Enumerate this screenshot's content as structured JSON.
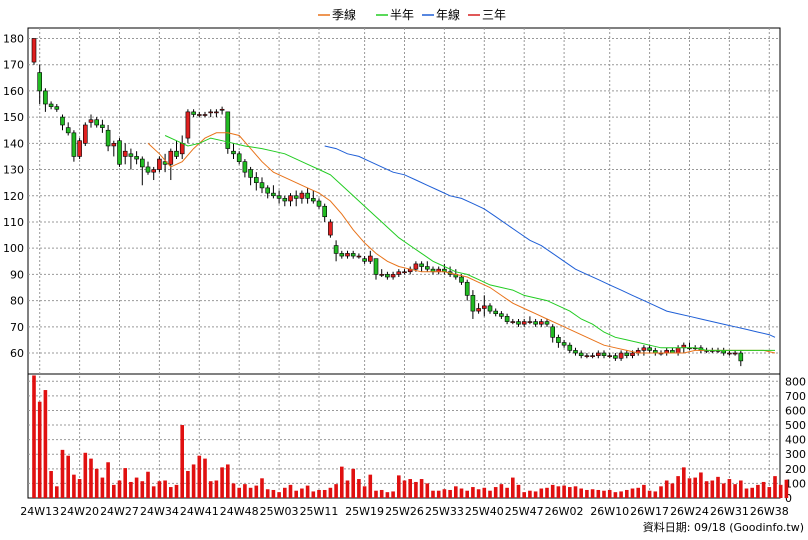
{
  "chart_data": {
    "type": "candlestick",
    "legend": [
      {
        "label": "季線",
        "color": "#e8731a"
      },
      {
        "label": "半年",
        "color": "#22cc22"
      },
      {
        "label": "年線",
        "color": "#1f5fd6"
      },
      {
        "label": "三年",
        "color": "#d62020"
      }
    ],
    "price_axis": {
      "ticks": [
        60,
        70,
        80,
        90,
        100,
        110,
        120,
        130,
        140,
        150,
        160,
        170,
        180
      ],
      "ylim": [
        52,
        184
      ]
    },
    "volume_axis": {
      "ticks": [
        0,
        100,
        200,
        300,
        400,
        500,
        600,
        700,
        800
      ],
      "ylim": [
        0,
        850
      ]
    },
    "x_ticks": [
      {
        "label": "24W13",
        "i": 1
      },
      {
        "label": "24W20",
        "i": 8
      },
      {
        "label": "24W27",
        "i": 15
      },
      {
        "label": "24W34",
        "i": 22
      },
      {
        "label": "24W41",
        "i": 29
      },
      {
        "label": "24W48",
        "i": 36
      },
      {
        "label": "25W03",
        "i": 43
      },
      {
        "label": "25W11",
        "i": 50
      },
      {
        "label": "25W19",
        "i": 58
      },
      {
        "label": "25W26",
        "i": 65
      },
      {
        "label": "25W33",
        "i": 72
      },
      {
        "label": "25W40",
        "i": 79
      },
      {
        "label": "25W47",
        "i": 86
      },
      {
        "label": "26W02",
        "i": 93
      },
      {
        "label": "26W10",
        "i": 101
      },
      {
        "label": "26W17",
        "i": 108
      },
      {
        "label": "26W24",
        "i": 115
      },
      {
        "label": "26W31",
        "i": 122
      },
      {
        "label": "26W38",
        "i": 129
      }
    ],
    "candles": [
      [
        171,
        180,
        170,
        180
      ],
      [
        167,
        170,
        155,
        160
      ],
      [
        160,
        161,
        152,
        155
      ],
      [
        155,
        156,
        153,
        154
      ],
      [
        154,
        155,
        152,
        153
      ],
      [
        150,
        151,
        145,
        147
      ],
      [
        146,
        148,
        143,
        144
      ],
      [
        144,
        145,
        133,
        135
      ],
      [
        135,
        142,
        134,
        141
      ],
      [
        140,
        148,
        139,
        147
      ],
      [
        148,
        151,
        146,
        149
      ],
      [
        149,
        150,
        146,
        147
      ],
      [
        147,
        149,
        144,
        146
      ],
      [
        145,
        147,
        137,
        139
      ],
      [
        139,
        141,
        135,
        140
      ],
      [
        141,
        142,
        131,
        132
      ],
      [
        135,
        140,
        132,
        137
      ],
      [
        136,
        138,
        130,
        135
      ],
      [
        135,
        137,
        132,
        134
      ],
      [
        134,
        135,
        124,
        131
      ],
      [
        131,
        133,
        128,
        129
      ],
      [
        129,
        131,
        126,
        130
      ],
      [
        130,
        135,
        129,
        134
      ],
      [
        133,
        136,
        129,
        132
      ],
      [
        132,
        138,
        126,
        137
      ],
      [
        137,
        141,
        134,
        135
      ],
      [
        136,
        143,
        134,
        140
      ],
      [
        142,
        153,
        140,
        152
      ],
      [
        152,
        153,
        150,
        151
      ],
      [
        151,
        152,
        150,
        151
      ],
      [
        151,
        152,
        150,
        151
      ],
      [
        152,
        153,
        150,
        152
      ],
      [
        152,
        153,
        150,
        152
      ],
      [
        153,
        154,
        151,
        153
      ],
      [
        152,
        152,
        136,
        138
      ],
      [
        137,
        140,
        134,
        136
      ],
      [
        136,
        137,
        132,
        133
      ],
      [
        133,
        134,
        127,
        129
      ],
      [
        130,
        131,
        124,
        127
      ],
      [
        127,
        129,
        122,
        125
      ],
      [
        125,
        127,
        121,
        123
      ],
      [
        123,
        124,
        119,
        121
      ],
      [
        121,
        124,
        119,
        120
      ],
      [
        120,
        122,
        117,
        119
      ],
      [
        119,
        120,
        116,
        118
      ],
      [
        118,
        121,
        116,
        120
      ],
      [
        120,
        122,
        116,
        119
      ],
      [
        119,
        122,
        117,
        121
      ],
      [
        121,
        123,
        117,
        119
      ],
      [
        119,
        122,
        117,
        118
      ],
      [
        118,
        119,
        115,
        116
      ],
      [
        116,
        117,
        110,
        112
      ],
      [
        105,
        111,
        104,
        110
      ],
      [
        101,
        103,
        95,
        98
      ],
      [
        98,
        99,
        96,
        97
      ],
      [
        97,
        99,
        96,
        98
      ],
      [
        98,
        99,
        96,
        97
      ],
      [
        97,
        98,
        96,
        97
      ],
      [
        96,
        97,
        94,
        95
      ],
      [
        95,
        99,
        94,
        97
      ],
      [
        96,
        96,
        88,
        90
      ],
      [
        90,
        92,
        89,
        90
      ],
      [
        90,
        91,
        88,
        89
      ],
      [
        89,
        91,
        88,
        90
      ],
      [
        90,
        92,
        89,
        91
      ],
      [
        91,
        92,
        90,
        91
      ],
      [
        91,
        93,
        90,
        92
      ],
      [
        92,
        95,
        91,
        94
      ],
      [
        94,
        95,
        91,
        93
      ],
      [
        93,
        95,
        91,
        92
      ],
      [
        92,
        93,
        90,
        91
      ],
      [
        91,
        93,
        90,
        92
      ],
      [
        92,
        94,
        90,
        91
      ],
      [
        91,
        93,
        89,
        90
      ],
      [
        90,
        92,
        88,
        89
      ],
      [
        89,
        90,
        86,
        87
      ],
      [
        87,
        88,
        80,
        82
      ],
      [
        82,
        84,
        73,
        76
      ],
      [
        76,
        79,
        75,
        77
      ],
      [
        77,
        82,
        74,
        78
      ],
      [
        78,
        79,
        75,
        76
      ],
      [
        76,
        77,
        74,
        75
      ],
      [
        75,
        76,
        73,
        74
      ],
      [
        74,
        75,
        71,
        72
      ],
      [
        72,
        73,
        71,
        72
      ],
      [
        72,
        73,
        70,
        71
      ],
      [
        71,
        73,
        70,
        72
      ],
      [
        72,
        74,
        71,
        72
      ],
      [
        72,
        73,
        70,
        71
      ],
      [
        71,
        73,
        70,
        72
      ],
      [
        72,
        73,
        70,
        71
      ],
      [
        70,
        71,
        64,
        66
      ],
      [
        66,
        67,
        62,
        64
      ],
      [
        64,
        65,
        62,
        63
      ],
      [
        63,
        64,
        60,
        61
      ],
      [
        61,
        62,
        59,
        60
      ],
      [
        60,
        61,
        58,
        59
      ],
      [
        59,
        60,
        58,
        59
      ],
      [
        59,
        60,
        58,
        59
      ],
      [
        59,
        61,
        58,
        60
      ],
      [
        60,
        61,
        58,
        59
      ],
      [
        59,
        60,
        58,
        59
      ],
      [
        59,
        60,
        57,
        58
      ],
      [
        58,
        61,
        57,
        60
      ],
      [
        60,
        61,
        58,
        59
      ],
      [
        59,
        61,
        58,
        60
      ],
      [
        60,
        62,
        59,
        61
      ],
      [
        61,
        63,
        59,
        62
      ],
      [
        62,
        63,
        60,
        61
      ],
      [
        61,
        62,
        59,
        60
      ],
      [
        60,
        61,
        59,
        60
      ],
      [
        60,
        62,
        59,
        61
      ],
      [
        61,
        62,
        60,
        60
      ],
      [
        60,
        63,
        59,
        62
      ],
      [
        62,
        64,
        60,
        63
      ],
      [
        62,
        64,
        61,
        62
      ],
      [
        62,
        63,
        61,
        62
      ],
      [
        62,
        63,
        60,
        61
      ],
      [
        61,
        62,
        60,
        61
      ],
      [
        61,
        62,
        60,
        61
      ],
      [
        61,
        62,
        60,
        61
      ],
      [
        61,
        62,
        59,
        60
      ],
      [
        60,
        61,
        59,
        60
      ],
      [
        60,
        61,
        59,
        60
      ],
      [
        60,
        61,
        55,
        57
      ]
    ],
    "volume": [
      840,
      660,
      740,
      185,
      80,
      330,
      290,
      160,
      130,
      310,
      270,
      200,
      140,
      245,
      90,
      120,
      205,
      110,
      140,
      115,
      180,
      80,
      115,
      120,
      75,
      90,
      500,
      185,
      230,
      290,
      270,
      115,
      120,
      210,
      230,
      100,
      70,
      95,
      70,
      85,
      135,
      60,
      55,
      40,
      70,
      90,
      50,
      65,
      85,
      45,
      55,
      55,
      70,
      95,
      215,
      120,
      200,
      130,
      80,
      160,
      50,
      55,
      40,
      45,
      155,
      120,
      130,
      110,
      130,
      100,
      50,
      50,
      60,
      55,
      80,
      65,
      50,
      75,
      60,
      70,
      50,
      75,
      95,
      70,
      140,
      90,
      40,
      50,
      45,
      65,
      70,
      90,
      80,
      85,
      75,
      80,
      65,
      55,
      60,
      55,
      50,
      55,
      40,
      45,
      55,
      65,
      70,
      90,
      50,
      45,
      80,
      120,
      100,
      150,
      210,
      135,
      140,
      175,
      115,
      120,
      145,
      100,
      130,
      95,
      120,
      65,
      70,
      90,
      110,
      75,
      150,
      90,
      125
    ],
    "ma_quarter": [
      [
        20,
        140
      ],
      [
        22,
        136
      ],
      [
        24,
        131
      ],
      [
        26,
        133
      ],
      [
        28,
        138
      ],
      [
        30,
        142
      ],
      [
        32,
        144
      ],
      [
        34,
        144
      ],
      [
        36,
        143
      ],
      [
        38,
        138
      ],
      [
        40,
        133
      ],
      [
        42,
        129
      ],
      [
        44,
        127
      ],
      [
        46,
        125
      ],
      [
        48,
        123
      ],
      [
        50,
        121
      ],
      [
        52,
        118
      ],
      [
        54,
        113
      ],
      [
        56,
        107
      ],
      [
        58,
        102
      ],
      [
        60,
        98
      ],
      [
        62,
        95
      ],
      [
        64,
        93
      ],
      [
        66,
        92
      ],
      [
        68,
        91
      ],
      [
        70,
        91
      ],
      [
        72,
        91
      ],
      [
        74,
        90
      ],
      [
        76,
        89
      ],
      [
        78,
        87
      ],
      [
        80,
        85
      ],
      [
        82,
        82
      ],
      [
        84,
        79
      ],
      [
        86,
        77
      ],
      [
        88,
        75
      ],
      [
        90,
        73
      ],
      [
        92,
        71
      ],
      [
        94,
        69
      ],
      [
        96,
        67
      ],
      [
        98,
        65
      ],
      [
        100,
        63
      ],
      [
        102,
        62
      ],
      [
        104,
        61
      ],
      [
        106,
        60
      ],
      [
        108,
        60
      ],
      [
        110,
        60
      ],
      [
        112,
        60
      ],
      [
        114,
        60
      ],
      [
        116,
        61
      ],
      [
        118,
        61
      ],
      [
        120,
        61
      ],
      [
        122,
        61
      ],
      [
        124,
        61
      ],
      [
        126,
        61
      ],
      [
        128,
        61
      ],
      [
        130,
        60
      ]
    ],
    "ma_half": [
      [
        23,
        143
      ],
      [
        25,
        141
      ],
      [
        27,
        139
      ],
      [
        29,
        140
      ],
      [
        31,
        142
      ],
      [
        33,
        141
      ],
      [
        35,
        140
      ],
      [
        37,
        139
      ],
      [
        40,
        138
      ],
      [
        42,
        137
      ],
      [
        44,
        136
      ],
      [
        46,
        134
      ],
      [
        48,
        132
      ],
      [
        50,
        130
      ],
      [
        52,
        128
      ],
      [
        54,
        124
      ],
      [
        56,
        120
      ],
      [
        58,
        116
      ],
      [
        60,
        112
      ],
      [
        62,
        108
      ],
      [
        64,
        104
      ],
      [
        66,
        101
      ],
      [
        68,
        98
      ],
      [
        70,
        95
      ],
      [
        72,
        93
      ],
      [
        74,
        91
      ],
      [
        76,
        90
      ],
      [
        78,
        88
      ],
      [
        80,
        86
      ],
      [
        82,
        85
      ],
      [
        84,
        84
      ],
      [
        86,
        82
      ],
      [
        88,
        81
      ],
      [
        90,
        80
      ],
      [
        92,
        78
      ],
      [
        94,
        76
      ],
      [
        96,
        73
      ],
      [
        98,
        71
      ],
      [
        100,
        68
      ],
      [
        102,
        66
      ],
      [
        104,
        65
      ],
      [
        106,
        64
      ],
      [
        108,
        63
      ],
      [
        110,
        62
      ],
      [
        112,
        62
      ],
      [
        114,
        62
      ],
      [
        116,
        62
      ],
      [
        118,
        61
      ],
      [
        120,
        61
      ],
      [
        122,
        61
      ],
      [
        124,
        61
      ],
      [
        126,
        61
      ],
      [
        128,
        61
      ],
      [
        130,
        61
      ]
    ],
    "ma_year": [
      [
        51,
        139
      ],
      [
        53,
        138
      ],
      [
        55,
        136
      ],
      [
        57,
        135
      ],
      [
        59,
        133
      ],
      [
        61,
        131
      ],
      [
        63,
        129
      ],
      [
        65,
        128
      ],
      [
        67,
        126
      ],
      [
        69,
        124
      ],
      [
        71,
        122
      ],
      [
        73,
        120
      ],
      [
        75,
        119
      ],
      [
        77,
        117
      ],
      [
        79,
        115
      ],
      [
        81,
        112
      ],
      [
        83,
        109
      ],
      [
        85,
        106
      ],
      [
        87,
        103
      ],
      [
        89,
        101
      ],
      [
        91,
        98
      ],
      [
        93,
        95
      ],
      [
        95,
        92
      ],
      [
        97,
        90
      ],
      [
        99,
        88
      ],
      [
        101,
        86
      ],
      [
        103,
        84
      ],
      [
        105,
        82
      ],
      [
        107,
        80
      ],
      [
        109,
        78
      ],
      [
        111,
        76
      ],
      [
        113,
        75
      ],
      [
        115,
        74
      ],
      [
        117,
        73
      ],
      [
        119,
        72
      ],
      [
        121,
        71
      ],
      [
        123,
        70
      ],
      [
        125,
        69
      ],
      [
        127,
        68
      ],
      [
        129,
        67
      ],
      [
        130,
        66
      ]
    ]
  },
  "footer": {
    "credit": "資料日期: 09/18  (Goodinfo.tw)"
  }
}
